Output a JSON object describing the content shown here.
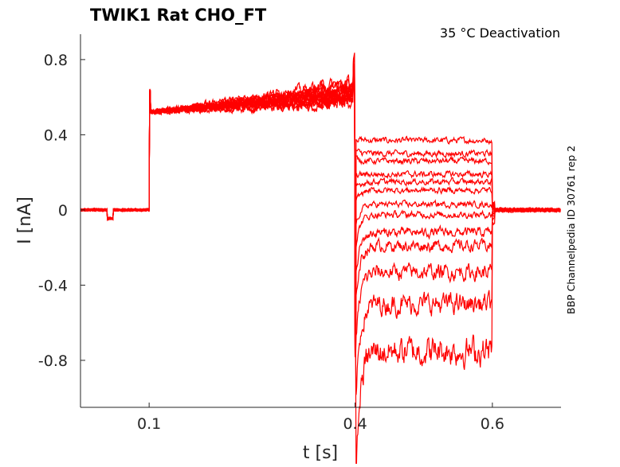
{
  "chart_data": {
    "type": "line",
    "title": "TWIK1  Rat  CHO_FT",
    "annotation": "35 °C  Deactivation",
    "side_label": "BBP Channelpedia ID 30761 rep 2",
    "xlabel": "t [s]",
    "ylabel": "I [nA]",
    "xlim": [
      0,
      0.7
    ],
    "ylim": [
      -1.05,
      0.935
    ],
    "xticks": [
      0.1,
      0.4,
      0.6
    ],
    "xtick_labels": [
      "0.1",
      "0.4",
      "0.6"
    ],
    "yticks": [
      0.8,
      0.4,
      0,
      -0.4,
      -0.8
    ],
    "ytick_labels": [
      "0.8",
      "0.4",
      "0",
      "-0.4",
      "-0.8"
    ],
    "grid": false,
    "line_color": "#ff0000",
    "protocol": {
      "prepulse_start": 0.1,
      "test_start": 0.4,
      "test_end": 0.6,
      "prepulse_current_start_nA": 0.52,
      "prepulse_current_end_nA": [
        0.58,
        0.6,
        0.62,
        0.64,
        0.68,
        0.6,
        0.57,
        0.62,
        0.66,
        0.59,
        0.63,
        0.61,
        0.65
      ]
    },
    "series_test_levels_nA": [
      0.37,
      0.3,
      0.26,
      0.19,
      0.15,
      0.105,
      0.03,
      -0.025,
      -0.12,
      -0.19,
      -0.33,
      -0.5,
      -0.75
    ]
  }
}
